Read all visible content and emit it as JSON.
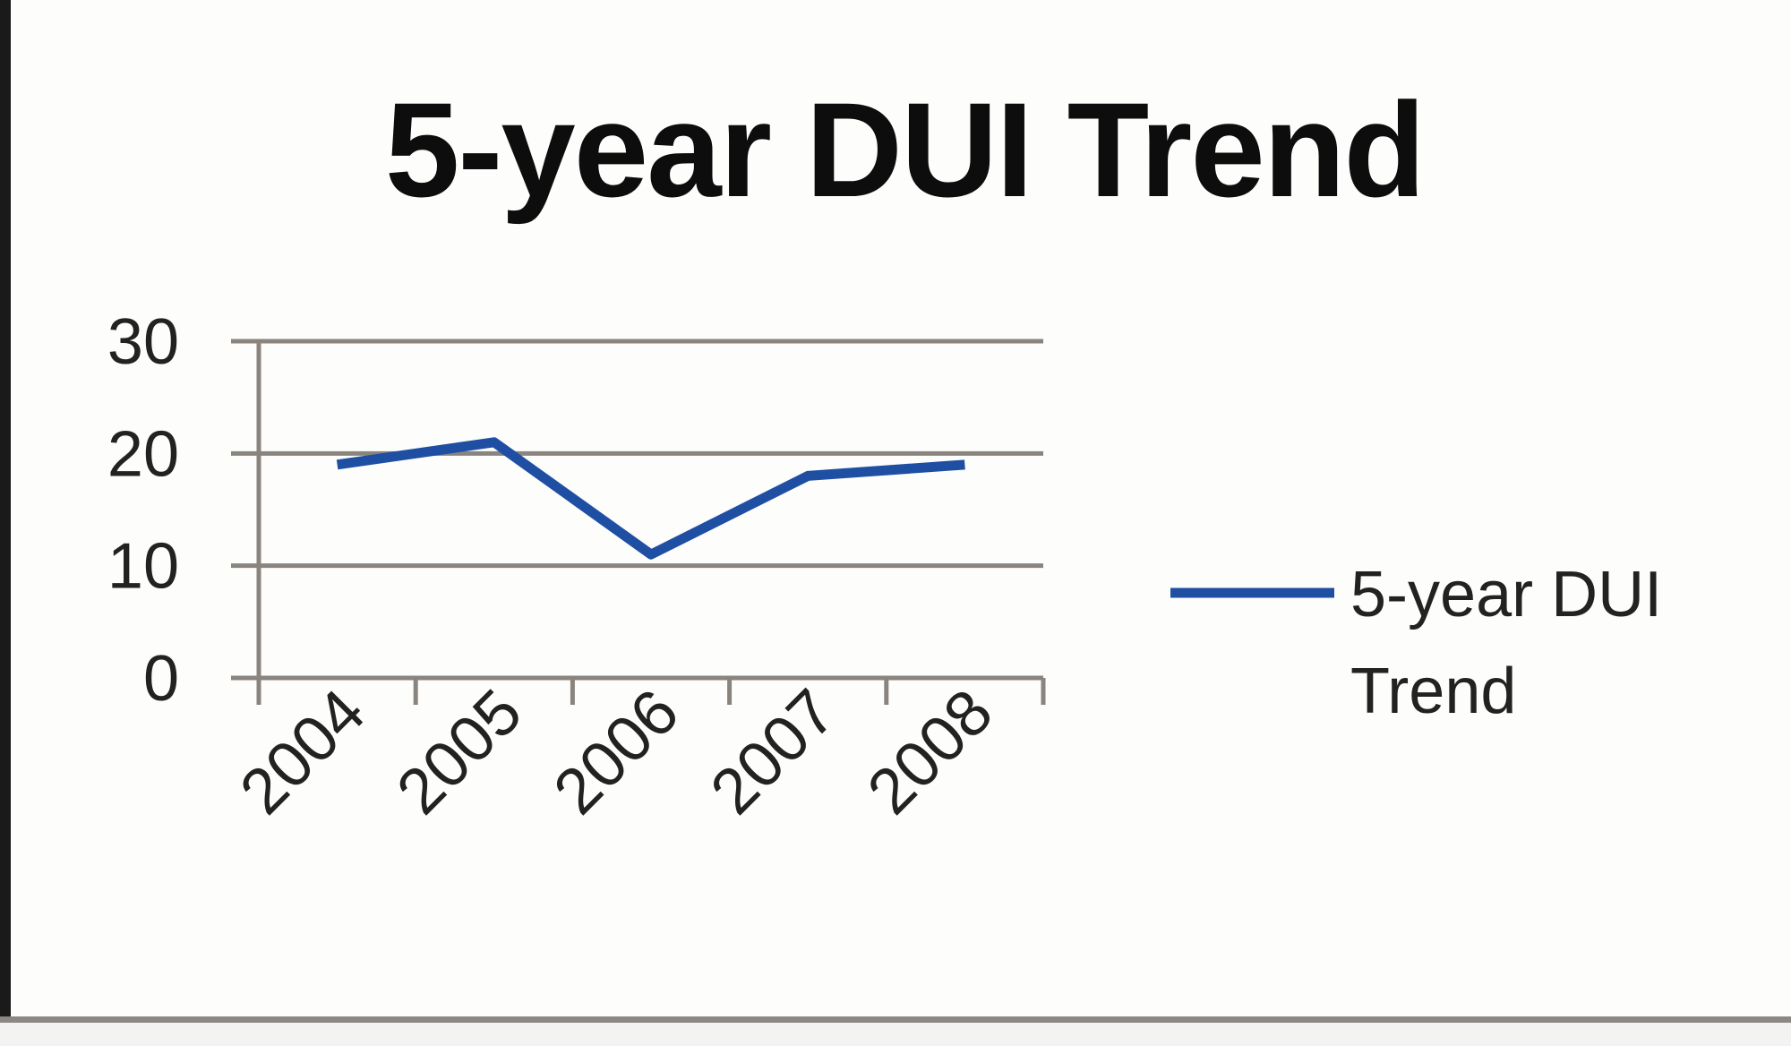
{
  "chart_data": {
    "type": "line",
    "title": "5-year DUI Trend",
    "xlabel": "",
    "ylabel": "",
    "categories": [
      "2004",
      "2005",
      "2006",
      "2007",
      "2008"
    ],
    "series": [
      {
        "name": "5-year DUI Trend",
        "values": [
          19,
          21,
          11,
          18,
          19
        ],
        "color": "#1f4fa3"
      }
    ],
    "ylim": [
      0,
      30
    ],
    "yticks": [
      "0",
      "10",
      "20",
      "30"
    ],
    "grid": true,
    "legend": {
      "placement": "right",
      "lines": [
        "5-year DUI",
        "Trend"
      ]
    },
    "colors": {
      "series": "#1f4fa3",
      "gridline": "#8a847e",
      "text": "#222222"
    }
  }
}
